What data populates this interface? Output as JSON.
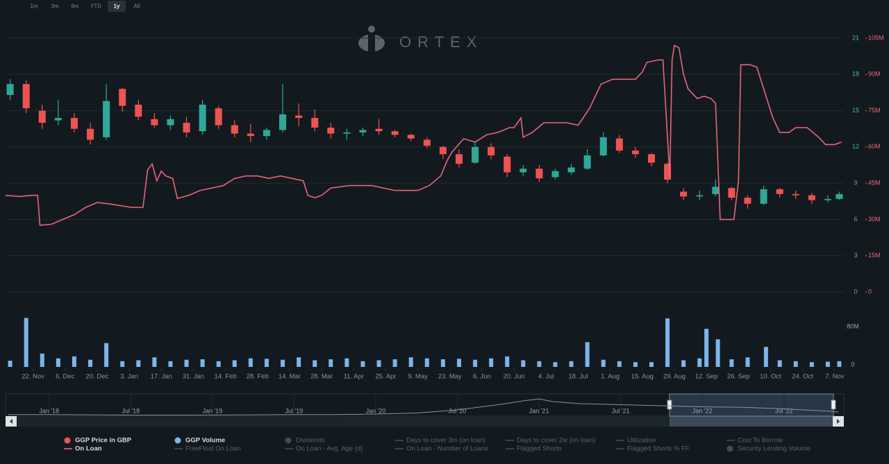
{
  "range_buttons": {
    "items": [
      "1m",
      "3m",
      "6m",
      "YTD",
      "1y",
      "All"
    ],
    "active": "1y"
  },
  "logo": "ORTEX",
  "chart_data": [
    {
      "type": "candlestick",
      "xlim": [
        0,
        366
      ],
      "xticks": [
        {
          "value": 12,
          "label": "22. Nov"
        },
        {
          "value": 26,
          "label": "6. Dec"
        },
        {
          "value": 40,
          "label": "20. Dec"
        },
        {
          "value": 54,
          "label": "3. Jan"
        },
        {
          "value": 68,
          "label": "17. Jan"
        },
        {
          "value": 82,
          "label": "31. Jan"
        },
        {
          "value": 96,
          "label": "14. Feb"
        },
        {
          "value": 110,
          "label": "28. Feb"
        },
        {
          "value": 124,
          "label": "14. Mar"
        },
        {
          "value": 138,
          "label": "28. Mar"
        },
        {
          "value": 152,
          "label": "11. Apr"
        },
        {
          "value": 166,
          "label": "25. Apr"
        },
        {
          "value": 180,
          "label": "9. May"
        },
        {
          "value": 194,
          "label": "23. May"
        },
        {
          "value": 208,
          "label": "6. Jun"
        },
        {
          "value": 222,
          "label": "20. Jun"
        },
        {
          "value": 236,
          "label": "4. Jul"
        },
        {
          "value": 250,
          "label": "18. Jul"
        },
        {
          "value": 264,
          "label": "1. Aug"
        },
        {
          "value": 278,
          "label": "15. Aug"
        },
        {
          "value": 292,
          "label": "29. Aug"
        },
        {
          "value": 306,
          "label": "12. Sep"
        },
        {
          "value": 320,
          "label": "26. Sep"
        },
        {
          "value": 334,
          "label": "10. Oct"
        },
        {
          "value": 348,
          "label": "24. Oct"
        },
        {
          "value": 362,
          "label": "7. Nov"
        }
      ],
      "ylim": [
        0,
        21
      ],
      "yticks": [
        0,
        3,
        6,
        9,
        12,
        15,
        18,
        21
      ],
      "y2lim": [
        0,
        105
      ],
      "y2ticks": [
        0,
        {
          "value": 15,
          "label": "15M"
        },
        {
          "value": 30,
          "label": "30M"
        },
        {
          "value": 45,
          "label": "45M"
        },
        {
          "value": 60,
          "label": "60M"
        },
        {
          "value": 75,
          "label": "75M"
        },
        {
          "value": 90,
          "label": "90M"
        },
        {
          "value": 105,
          "label": "105M"
        }
      ],
      "grid": true,
      "series": [
        {
          "color": "#ef5350",
          "up_color": "#2fa89a",
          "x": [
            2,
            9,
            16,
            23,
            30,
            37,
            44,
            51,
            58,
            65,
            72,
            79,
            86,
            93,
            100,
            107,
            114,
            121,
            128,
            135,
            142,
            149,
            156,
            163,
            170,
            177,
            184,
            191,
            198,
            205,
            212,
            219,
            226,
            233,
            240,
            247,
            254,
            261,
            268,
            275,
            282,
            289,
            296,
            303,
            310,
            317,
            324,
            331,
            338,
            345,
            352,
            359,
            364
          ],
          "open": [
            16.3,
            17.2,
            15.0,
            14.2,
            14.4,
            13.5,
            12.8,
            16.8,
            15.5,
            14.3,
            13.8,
            14.0,
            13.3,
            15.2,
            13.8,
            13.1,
            12.9,
            13.4,
            14.6,
            14.4,
            13.6,
            13.1,
            13.2,
            13.5,
            13.3,
            13.0,
            12.6,
            12.0,
            11.4,
            10.7,
            12.0,
            11.2,
            9.9,
            10.2,
            9.5,
            9.9,
            10.2,
            11.3,
            12.7,
            11.7,
            11.4,
            10.6,
            8.3,
            7.9,
            8.1,
            8.6,
            7.8,
            7.3,
            8.5,
            8.1,
            8.0,
            7.6,
            7.7
          ],
          "high": [
            17.6,
            17.5,
            15.5,
            15.9,
            14.8,
            14.0,
            17.2,
            16.9,
            15.9,
            14.8,
            14.6,
            14.5,
            15.9,
            15.4,
            14.2,
            13.9,
            13.6,
            17.2,
            15.6,
            15.1,
            14.0,
            13.5,
            13.6,
            14.3,
            13.4,
            13.1,
            12.8,
            12.1,
            11.8,
            12.5,
            12.3,
            11.4,
            10.5,
            10.5,
            10.2,
            10.6,
            11.8,
            13.2,
            13.0,
            12.0,
            11.5,
            10.7,
            8.6,
            8.4,
            9.3,
            8.7,
            8.0,
            8.8,
            8.6,
            8.4,
            8.2,
            8.0,
            8.3
          ],
          "low": [
            15.9,
            14.8,
            13.5,
            13.8,
            13.2,
            12.2,
            12.6,
            14.9,
            14.2,
            13.6,
            13.4,
            12.8,
            13.0,
            13.5,
            12.8,
            12.4,
            12.6,
            13.2,
            13.7,
            13.3,
            12.7,
            12.6,
            12.9,
            13.0,
            12.8,
            12.5,
            11.9,
            11.0,
            10.3,
            10.6,
            11.0,
            9.5,
            9.6,
            9.1,
            9.3,
            9.7,
            10.1,
            11.2,
            11.5,
            11.1,
            10.4,
            9.0,
            7.6,
            7.6,
            7.9,
            7.6,
            6.9,
            7.2,
            7.8,
            7.7,
            7.3,
            7.4,
            7.6
          ],
          "close": [
            17.2,
            15.2,
            14.0,
            14.4,
            13.5,
            12.6,
            15.8,
            15.4,
            14.5,
            13.8,
            14.3,
            13.2,
            15.5,
            13.8,
            13.1,
            12.9,
            13.4,
            14.7,
            14.4,
            13.6,
            13.1,
            13.2,
            13.4,
            13.3,
            13.0,
            12.7,
            12.1,
            11.4,
            10.6,
            12.0,
            11.3,
            9.9,
            10.2,
            9.4,
            10.0,
            10.3,
            11.3,
            12.8,
            11.7,
            11.4,
            10.7,
            9.3,
            7.9,
            8.0,
            8.7,
            7.8,
            7.3,
            8.5,
            8.1,
            8.0,
            7.6,
            7.7,
            8.1
          ]
        },
        {
          "type": "line",
          "axis": "y2",
          "color": "#e8657d",
          "x": [
            0,
            6,
            12,
            14,
            15,
            20,
            25,
            30,
            35,
            40,
            45,
            55,
            60,
            62,
            64,
            66,
            68,
            70,
            73,
            75,
            80,
            85,
            90,
            95,
            100,
            105,
            110,
            115,
            120,
            125,
            130,
            132,
            135,
            138,
            142,
            150,
            160,
            165,
            170,
            175,
            180,
            185,
            190,
            193,
            195,
            200,
            205,
            210,
            215,
            220,
            222,
            225,
            226,
            230,
            235,
            240,
            245,
            250,
            255,
            260,
            265,
            270,
            275,
            278,
            280,
            285,
            287,
            290,
            291,
            292,
            294,
            296,
            298,
            302,
            305,
            308,
            310,
            312,
            315,
            318,
            320,
            321,
            325,
            328,
            335,
            338,
            342,
            345,
            350,
            355,
            358,
            362,
            365
          ],
          "values": [
            40,
            39.5,
            40,
            40,
            27.6,
            28,
            30,
            32,
            35,
            37,
            36.5,
            35,
            35,
            50.5,
            53,
            46,
            50,
            48,
            47,
            38.7,
            40,
            42,
            43,
            44,
            47,
            48,
            48,
            47,
            48,
            47,
            46,
            40,
            39,
            40,
            43,
            44,
            44,
            43,
            42,
            42,
            42,
            44,
            48,
            54.8,
            58,
            63.4,
            62,
            65,
            66,
            68,
            68,
            72,
            64,
            66,
            70,
            70,
            70,
            69,
            76,
            86,
            88,
            88,
            88,
            91,
            95,
            96,
            96,
            47.6,
            96,
            102,
            101,
            90,
            84,
            80,
            81,
            80,
            78,
            30,
            30,
            30,
            46,
            94,
            94,
            93,
            72,
            66,
            66,
            68,
            68,
            64,
            61,
            61,
            62
          ]
        }
      ]
    },
    {
      "type": "bar",
      "xlim": [
        0,
        366
      ],
      "ylim": [
        0,
        105
      ],
      "yticks": [
        0,
        {
          "value": 80,
          "label": "80M"
        }
      ],
      "color": "#7cb5ec",
      "x": [
        2,
        9,
        16,
        23,
        30,
        37,
        44,
        51,
        58,
        65,
        72,
        79,
        86,
        93,
        100,
        107,
        114,
        121,
        128,
        135,
        142,
        149,
        156,
        163,
        170,
        177,
        184,
        191,
        198,
        205,
        212,
        219,
        226,
        233,
        240,
        247,
        254,
        261,
        268,
        275,
        282,
        289,
        296,
        303,
        306,
        311,
        317,
        324,
        332,
        338,
        345,
        352,
        359,
        364
      ],
      "values": [
        13,
        103,
        28,
        18,
        22,
        15,
        50,
        12,
        14,
        20,
        12,
        15,
        16,
        12,
        14,
        18,
        17,
        15,
        20,
        14,
        16,
        18,
        12,
        14,
        16,
        20,
        18,
        16,
        17,
        15,
        18,
        22,
        14,
        12,
        10,
        12,
        52,
        15,
        12,
        10,
        10,
        102,
        14,
        18,
        80,
        58,
        16,
        20,
        42,
        14,
        12,
        10,
        11,
        12
      ]
    },
    {
      "type": "line",
      "xlim": [
        -3.2,
        58.4
      ],
      "ylim": [
        0,
        40
      ],
      "xticks": [
        {
          "value": 0,
          "label": "Jan '18"
        },
        {
          "value": 6,
          "label": "Jul '18"
        },
        {
          "value": 12,
          "label": "Jan '19"
        },
        {
          "value": 18,
          "label": "Jul '19"
        },
        {
          "value": 24,
          "label": "Jan '20"
        },
        {
          "value": 30,
          "label": "Jul '20"
        },
        {
          "value": 36,
          "label": "Jan '21"
        },
        {
          "value": 42,
          "label": "Jul '21"
        },
        {
          "value": 48,
          "label": "Jan '22"
        },
        {
          "value": 54,
          "label": "Jul '22"
        }
      ],
      "color": "#8a949c",
      "x": [
        -3,
        0,
        3,
        6,
        9,
        12,
        15,
        18,
        21,
        24,
        27,
        30,
        33,
        35,
        36,
        37,
        39,
        42,
        45,
        48,
        51,
        54,
        57,
        58
      ],
      "values": [
        3,
        3,
        2.5,
        2,
        2,
        2.2,
        2.5,
        3,
        3,
        4,
        6,
        12,
        22,
        30,
        33,
        28,
        24,
        22,
        20,
        18,
        17,
        14,
        10,
        8
      ]
    }
  ],
  "legend": [
    {
      "name": "GGP Price in GBP",
      "marker": "dot",
      "color": "#ef5350",
      "active": true
    },
    {
      "name": "GGP Volume",
      "marker": "dot",
      "color": "#7cb5ec",
      "active": true
    },
    {
      "name": "Dividends",
      "marker": "dot",
      "color": "#444b50",
      "active": false
    },
    {
      "name": "Days to cover 3m (on loan)",
      "marker": "line",
      "color": "#444b50",
      "active": false
    },
    {
      "name": "Days to cover 2w (on loan)",
      "marker": "line",
      "color": "#444b50",
      "active": false
    },
    {
      "name": "Utilization",
      "marker": "line",
      "color": "#444b50",
      "active": false
    },
    {
      "name": "Cost To Borrow",
      "marker": "line",
      "color": "#444b50",
      "active": false
    },
    {
      "name": "On Loan",
      "marker": "line",
      "color": "#e8657d",
      "active": true
    },
    {
      "name": "FreeFloat On Loan",
      "marker": "line",
      "color": "#444b50",
      "active": false
    },
    {
      "name": "On Loan - Avg. Age (d)",
      "marker": "line",
      "color": "#444b50",
      "active": false
    },
    {
      "name": "On Loan - Number of Loans",
      "marker": "line",
      "color": "#444b50",
      "active": false
    },
    {
      "name": "Flagged Shorts",
      "marker": "line",
      "color": "#444b50",
      "active": false
    },
    {
      "name": "Flagged Shorts % FF",
      "marker": "line",
      "color": "#444b50",
      "active": false
    },
    {
      "name": "Security Lending Volume",
      "marker": "dot",
      "color": "#444b50",
      "active": false
    }
  ]
}
